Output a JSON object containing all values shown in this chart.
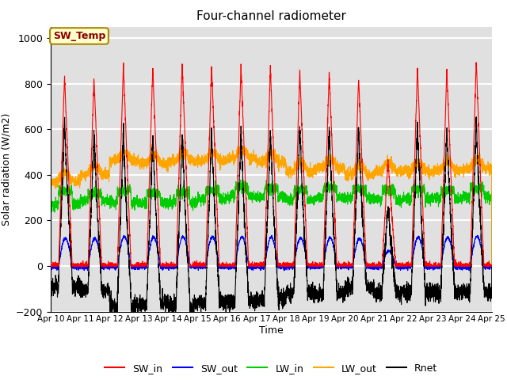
{
  "title": "Four-channel radiometer",
  "ylabel": "Solar radiation (W/m2)",
  "xlabel": "Time",
  "ylim": [
    -200,
    1050
  ],
  "yticks": [
    -200,
    0,
    200,
    400,
    600,
    800,
    1000
  ],
  "background_color": "#e0e0e0",
  "grid_color": "white",
  "annotation_text": "SW_Temp",
  "annotation_bg": "#ffffcc",
  "annotation_border": "#aa8800",
  "colors": {
    "SW_in": "red",
    "SW_out": "blue",
    "LW_in": "#00cc00",
    "LW_out": "orange",
    "Rnet": "black"
  },
  "num_days": 15,
  "day_start": 10,
  "legend_labels": [
    "SW_in",
    "SW_out",
    "LW_in",
    "LW_out",
    "Rnet"
  ]
}
